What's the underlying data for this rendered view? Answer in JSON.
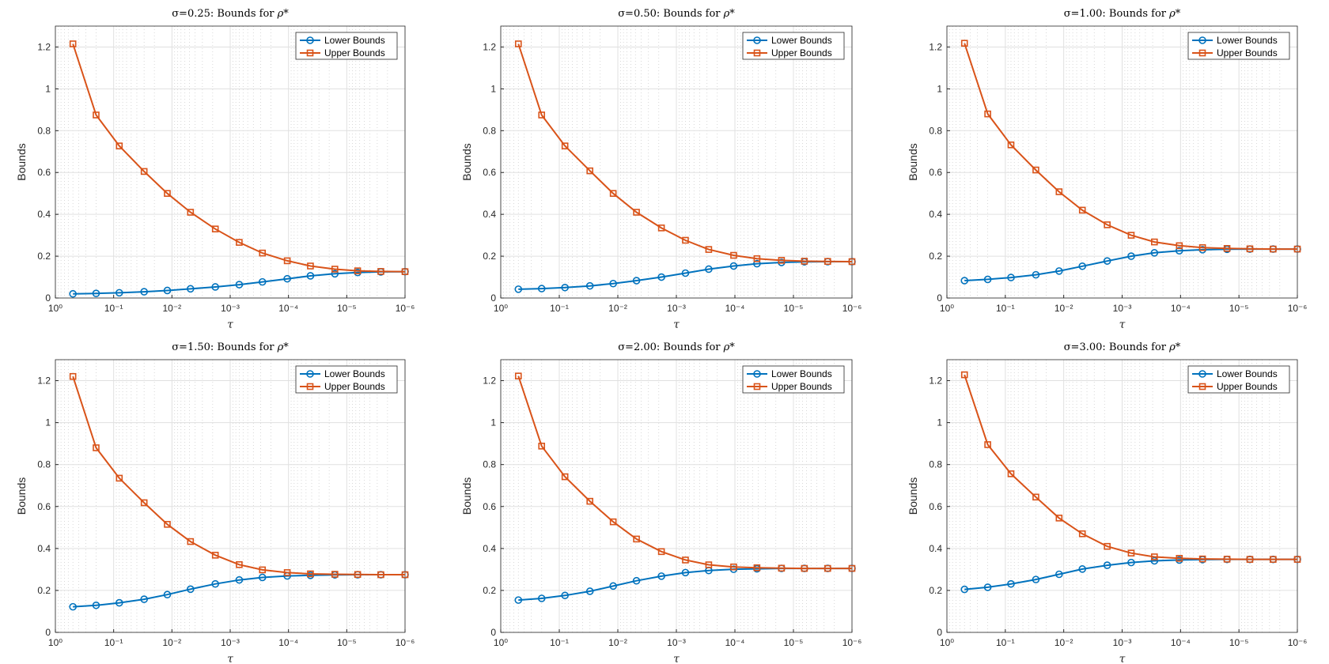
{
  "colors": {
    "lower": "#0072BD",
    "upper": "#D95319",
    "grid": "#e0e0e0",
    "minor_grid": "#cfcfcf",
    "axis": "#262626"
  },
  "icons": {
    "lower_marker": "circle-marker-icon",
    "upper_marker": "square-marker-icon"
  },
  "chart_data": [
    {
      "type": "line",
      "title_prefix": "σ=0.25: Bounds for ",
      "title_symbol": "ρ*",
      "xlabel": "τ",
      "ylabel": "Bounds",
      "xscale": "log",
      "xlim": [
        1,
        1e-06
      ],
      "ylim": [
        0,
        1.3
      ],
      "xticks": [
        "10⁰",
        "10⁻¹",
        "10⁻²",
        "10⁻³",
        "10⁻⁴",
        "10⁻⁵",
        "10⁻⁶"
      ],
      "yticks": [
        "0",
        "0.2",
        "0.4",
        "0.6",
        "0.8",
        "1",
        "1.2"
      ],
      "grid": true,
      "legend": "top-right",
      "x": [
        0.5,
        0.2,
        0.08,
        0.03,
        0.012,
        0.0048,
        0.0018,
        0.0007,
        0.00028,
        0.000105,
        4.2e-05,
        1.6e-05,
        6.5e-06,
        2.6e-06,
        1e-06
      ],
      "series": [
        {
          "name": "Lower Bounds",
          "values": [
            0.02,
            0.022,
            0.025,
            0.03,
            0.036,
            0.044,
            0.053,
            0.064,
            0.077,
            0.092,
            0.106,
            0.116,
            0.122,
            0.125,
            0.126
          ]
        },
        {
          "name": "Upper Bounds",
          "values": [
            1.215,
            0.875,
            0.727,
            0.605,
            0.5,
            0.41,
            0.33,
            0.266,
            0.215,
            0.178,
            0.153,
            0.138,
            0.13,
            0.127,
            0.126
          ]
        }
      ]
    },
    {
      "type": "line",
      "title_prefix": "σ=0.50: Bounds for ",
      "title_symbol": "ρ*",
      "xlabel": "τ",
      "ylabel": "Bounds",
      "xscale": "log",
      "xlim": [
        1,
        1e-06
      ],
      "ylim": [
        0,
        1.3
      ],
      "xticks": [
        "10⁰",
        "10⁻¹",
        "10⁻²",
        "10⁻³",
        "10⁻⁴",
        "10⁻⁵",
        "10⁻⁶"
      ],
      "yticks": [
        "0",
        "0.2",
        "0.4",
        "0.6",
        "0.8",
        "1",
        "1.2"
      ],
      "grid": true,
      "legend": "top-right",
      "x": [
        0.5,
        0.2,
        0.08,
        0.03,
        0.012,
        0.0048,
        0.0018,
        0.0007,
        0.00028,
        0.000105,
        4.2e-05,
        1.6e-05,
        6.5e-06,
        2.6e-06,
        1e-06
      ],
      "series": [
        {
          "name": "Lower Bounds",
          "values": [
            0.042,
            0.045,
            0.05,
            0.058,
            0.069,
            0.083,
            0.1,
            0.119,
            0.138,
            0.153,
            0.164,
            0.17,
            0.173,
            0.174,
            0.174
          ]
        },
        {
          "name": "Upper Bounds",
          "values": [
            1.215,
            0.875,
            0.727,
            0.608,
            0.5,
            0.41,
            0.335,
            0.276,
            0.232,
            0.204,
            0.188,
            0.18,
            0.176,
            0.175,
            0.174
          ]
        }
      ]
    },
    {
      "type": "line",
      "title_prefix": "σ=1.00: Bounds for ",
      "title_symbol": "ρ*",
      "xlabel": "τ",
      "ylabel": "Bounds",
      "xscale": "log",
      "xlim": [
        1,
        1e-06
      ],
      "ylim": [
        0,
        1.3
      ],
      "xticks": [
        "10⁰",
        "10⁻¹",
        "10⁻²",
        "10⁻³",
        "10⁻⁴",
        "10⁻⁵",
        "10⁻⁶"
      ],
      "yticks": [
        "0",
        "0.2",
        "0.4",
        "0.6",
        "0.8",
        "1",
        "1.2"
      ],
      "grid": true,
      "legend": "top-right",
      "x": [
        0.5,
        0.2,
        0.08,
        0.03,
        0.012,
        0.0048,
        0.0018,
        0.0007,
        0.00028,
        0.000105,
        4.2e-05,
        1.6e-05,
        6.5e-06,
        2.6e-06,
        1e-06
      ],
      "series": [
        {
          "name": "Lower Bounds",
          "values": [
            0.083,
            0.089,
            0.098,
            0.111,
            0.129,
            0.152,
            0.177,
            0.2,
            0.216,
            0.226,
            0.231,
            0.233,
            0.234,
            0.234,
            0.234
          ]
        },
        {
          "name": "Upper Bounds",
          "values": [
            1.218,
            0.88,
            0.732,
            0.612,
            0.508,
            0.42,
            0.35,
            0.3,
            0.268,
            0.25,
            0.241,
            0.237,
            0.235,
            0.234,
            0.234
          ]
        }
      ]
    },
    {
      "type": "line",
      "title_prefix": "σ=1.50: Bounds for ",
      "title_symbol": "ρ*",
      "xlabel": "τ",
      "ylabel": "Bounds",
      "xscale": "log",
      "xlim": [
        1,
        1e-06
      ],
      "ylim": [
        0,
        1.3
      ],
      "xticks": [
        "10⁰",
        "10⁻¹",
        "10⁻²",
        "10⁻³",
        "10⁻⁴",
        "10⁻⁵",
        "10⁻⁶"
      ],
      "yticks": [
        "0",
        "0.2",
        "0.4",
        "0.6",
        "0.8",
        "1",
        "1.2"
      ],
      "grid": true,
      "legend": "top-right",
      "x": [
        0.5,
        0.2,
        0.08,
        0.03,
        0.012,
        0.0048,
        0.0018,
        0.0007,
        0.00028,
        0.000105,
        4.2e-05,
        1.6e-05,
        6.5e-06,
        2.6e-06,
        1e-06
      ],
      "series": [
        {
          "name": "Lower Bounds",
          "values": [
            0.122,
            0.129,
            0.141,
            0.158,
            0.18,
            0.206,
            0.231,
            0.25,
            0.262,
            0.269,
            0.272,
            0.274,
            0.275,
            0.275,
            0.275
          ]
        },
        {
          "name": "Upper Bounds",
          "values": [
            1.22,
            0.88,
            0.735,
            0.618,
            0.515,
            0.433,
            0.368,
            0.323,
            0.298,
            0.285,
            0.279,
            0.277,
            0.276,
            0.275,
            0.275
          ]
        }
      ]
    },
    {
      "type": "line",
      "title_prefix": "σ=2.00: Bounds for ",
      "title_symbol": "ρ*",
      "xlabel": "τ",
      "ylabel": "Bounds",
      "xscale": "log",
      "xlim": [
        1,
        1e-06
      ],
      "ylim": [
        0,
        1.3
      ],
      "xticks": [
        "10⁰",
        "10⁻¹",
        "10⁻²",
        "10⁻³",
        "10⁻⁴",
        "10⁻⁵",
        "10⁻⁶"
      ],
      "yticks": [
        "0",
        "0.2",
        "0.4",
        "0.6",
        "0.8",
        "1",
        "1.2"
      ],
      "grid": true,
      "legend": "top-right",
      "x": [
        0.5,
        0.2,
        0.08,
        0.03,
        0.012,
        0.0048,
        0.0018,
        0.0007,
        0.00028,
        0.000105,
        4.2e-05,
        1.6e-05,
        6.5e-06,
        2.6e-06,
        1e-06
      ],
      "series": [
        {
          "name": "Lower Bounds",
          "values": [
            0.154,
            0.162,
            0.176,
            0.196,
            0.221,
            0.246,
            0.268,
            0.285,
            0.295,
            0.301,
            0.303,
            0.305,
            0.305,
            0.305,
            0.305
          ]
        },
        {
          "name": "Upper Bounds",
          "values": [
            1.222,
            0.888,
            0.742,
            0.625,
            0.527,
            0.445,
            0.385,
            0.345,
            0.322,
            0.312,
            0.308,
            0.306,
            0.305,
            0.305,
            0.305
          ]
        }
      ]
    },
    {
      "type": "line",
      "title_prefix": "σ=3.00: Bounds for ",
      "title_symbol": "ρ*",
      "xlabel": "τ",
      "ylabel": "Bounds",
      "xscale": "log",
      "xlim": [
        1,
        1e-06
      ],
      "ylim": [
        0,
        1.3
      ],
      "xticks": [
        "10⁰",
        "10⁻¹",
        "10⁻²",
        "10⁻³",
        "10⁻⁴",
        "10⁻⁵",
        "10⁻⁶"
      ],
      "yticks": [
        "0",
        "0.2",
        "0.4",
        "0.6",
        "0.8",
        "1",
        "1.2"
      ],
      "grid": true,
      "legend": "top-right",
      "x": [
        0.5,
        0.2,
        0.08,
        0.03,
        0.012,
        0.0048,
        0.0018,
        0.0007,
        0.00028,
        0.000105,
        4.2e-05,
        1.6e-05,
        6.5e-06,
        2.6e-06,
        1e-06
      ],
      "series": [
        {
          "name": "Lower Bounds",
          "values": [
            0.205,
            0.215,
            0.231,
            0.252,
            0.277,
            0.302,
            0.32,
            0.333,
            0.341,
            0.345,
            0.347,
            0.348,
            0.348,
            0.348,
            0.348
          ]
        },
        {
          "name": "Upper Bounds",
          "values": [
            1.228,
            0.895,
            0.756,
            0.645,
            0.545,
            0.47,
            0.41,
            0.378,
            0.36,
            0.353,
            0.35,
            0.349,
            0.348,
            0.348,
            0.348
          ]
        }
      ]
    }
  ]
}
